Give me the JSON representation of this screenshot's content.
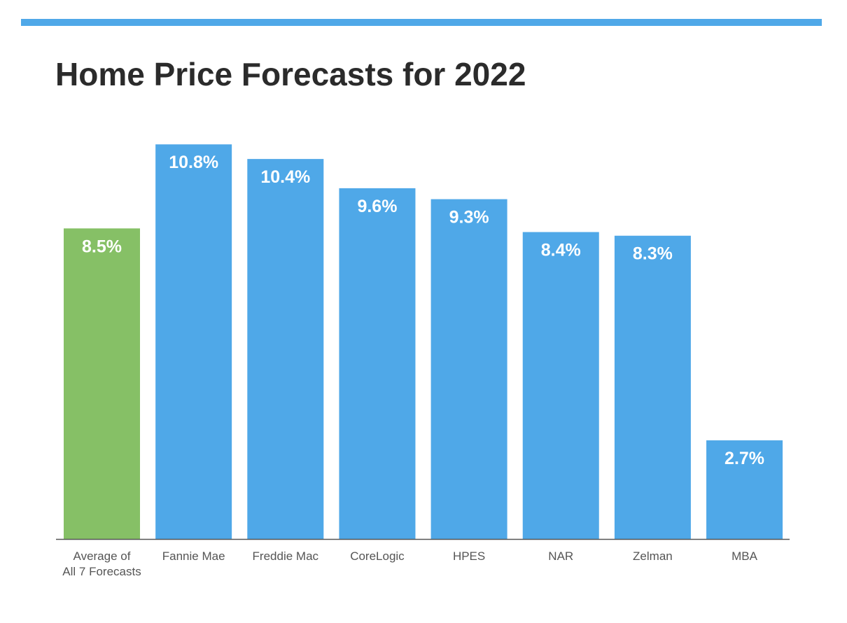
{
  "theme": {
    "accent_color": "#4fa8e8",
    "highlight_color": "#86c066",
    "axis_color": "#555555",
    "title_color": "#2b2b2b"
  },
  "chart_data": {
    "type": "bar",
    "title": "Home Price Forecasts for 2022",
    "xlabel": "",
    "ylabel": "",
    "ylim": [
      0,
      11.4
    ],
    "grid": false,
    "categories": [
      [
        "Average of",
        "All 7 Forecasts"
      ],
      [
        "Fannie Mae"
      ],
      [
        "Freddie Mac"
      ],
      [
        "CoreLogic"
      ],
      [
        "HPES"
      ],
      [
        "NAR"
      ],
      [
        "Zelman"
      ],
      [
        "MBA"
      ]
    ],
    "values": [
      8.5,
      10.8,
      10.4,
      9.6,
      9.3,
      8.4,
      8.3,
      2.7
    ],
    "value_labels": [
      "8.5%",
      "10.8%",
      "10.4%",
      "9.6%",
      "9.3%",
      "8.4%",
      "8.3%",
      "2.7%"
    ],
    "highlight_index": 0
  }
}
